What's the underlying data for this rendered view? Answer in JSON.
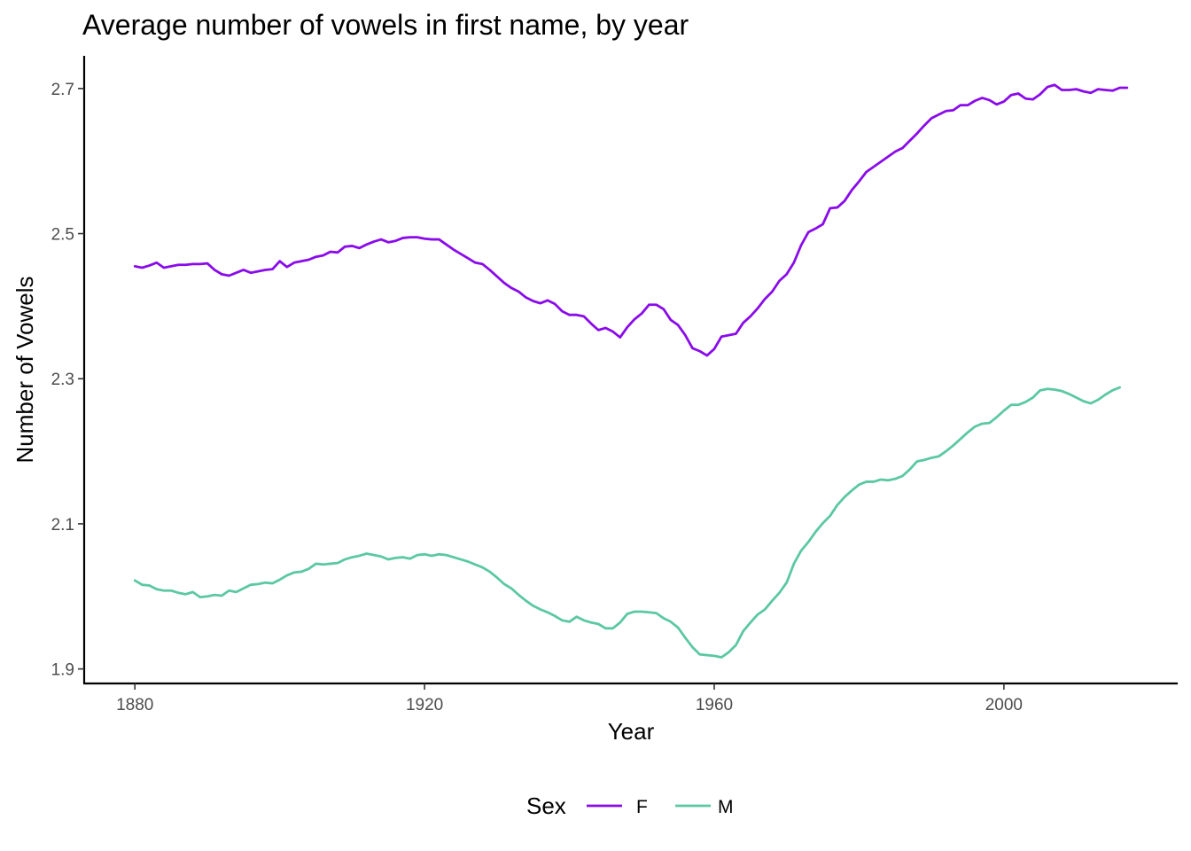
{
  "chart_data": {
    "type": "line",
    "title": "Average number of vowels in first name, by year",
    "xlabel": "Year",
    "ylabel": "Number of Vowels",
    "xlim": [
      1873,
      2024
    ],
    "ylim": [
      1.88,
      2.745
    ],
    "xticks": [
      1880,
      1920,
      1960,
      2000
    ],
    "xtick_labels": [
      "1880",
      "1920",
      "1960",
      "2000"
    ],
    "yticks": [
      1.9,
      2.1,
      2.3,
      2.5,
      2.7
    ],
    "ytick_labels": [
      "1.9",
      "2.1",
      "2.3",
      "2.5",
      "2.7"
    ],
    "grid": false,
    "legend": {
      "title": "Sex",
      "position": "bottom"
    },
    "series": [
      {
        "name": "F",
        "color": "#8A0BEA",
        "points": [
          [
            1880,
            2.455
          ],
          [
            1881,
            2.453
          ],
          [
            1882,
            2.456
          ],
          [
            1883,
            2.46
          ],
          [
            1884,
            2.453
          ],
          [
            1885,
            2.455
          ],
          [
            1886,
            2.457
          ],
          [
            1887,
            2.457
          ],
          [
            1888,
            2.458
          ],
          [
            1889,
            2.458
          ],
          [
            1890,
            2.459
          ],
          [
            1891,
            2.45
          ],
          [
            1892,
            2.444
          ],
          [
            1893,
            2.442
          ],
          [
            1894,
            2.446
          ],
          [
            1895,
            2.45
          ],
          [
            1896,
            2.446
          ],
          [
            1897,
            2.448
          ],
          [
            1898,
            2.45
          ],
          [
            1899,
            2.451
          ],
          [
            1900,
            2.462
          ],
          [
            1901,
            2.454
          ],
          [
            1902,
            2.46
          ],
          [
            1903,
            2.462
          ],
          [
            1904,
            2.464
          ],
          [
            1905,
            2.468
          ],
          [
            1906,
            2.47
          ],
          [
            1907,
            2.475
          ],
          [
            1908,
            2.474
          ],
          [
            1909,
            2.482
          ],
          [
            1910,
            2.483
          ],
          [
            1911,
            2.48
          ],
          [
            1912,
            2.485
          ],
          [
            1913,
            2.489
          ],
          [
            1914,
            2.492
          ],
          [
            1915,
            2.488
          ],
          [
            1916,
            2.49
          ],
          [
            1917,
            2.494
          ],
          [
            1918,
            2.495
          ],
          [
            1919,
            2.495
          ],
          [
            1920,
            2.493
          ],
          [
            1921,
            2.492
          ],
          [
            1922,
            2.492
          ],
          [
            1923,
            2.485
          ],
          [
            1924,
            2.478
          ],
          [
            1925,
            2.472
          ],
          [
            1926,
            2.466
          ],
          [
            1927,
            2.46
          ],
          [
            1928,
            2.458
          ],
          [
            1929,
            2.45
          ],
          [
            1930,
            2.441
          ],
          [
            1931,
            2.432
          ],
          [
            1932,
            2.425
          ],
          [
            1933,
            2.42
          ],
          [
            1934,
            2.412
          ],
          [
            1935,
            2.407
          ],
          [
            1936,
            2.404
          ],
          [
            1937,
            2.408
          ],
          [
            1938,
            2.403
          ],
          [
            1939,
            2.393
          ],
          [
            1940,
            2.388
          ],
          [
            1941,
            2.388
          ],
          [
            1942,
            2.386
          ],
          [
            1943,
            2.376
          ],
          [
            1944,
            2.367
          ],
          [
            1945,
            2.37
          ],
          [
            1946,
            2.365
          ],
          [
            1947,
            2.357
          ],
          [
            1948,
            2.371
          ],
          [
            1949,
            2.382
          ],
          [
            1950,
            2.39
          ],
          [
            1951,
            2.402
          ],
          [
            1952,
            2.402
          ],
          [
            1953,
            2.396
          ],
          [
            1954,
            2.381
          ],
          [
            1955,
            2.374
          ],
          [
            1956,
            2.36
          ],
          [
            1957,
            2.342
          ],
          [
            1958,
            2.338
          ],
          [
            1959,
            2.332
          ],
          [
            1960,
            2.341
          ],
          [
            1961,
            2.358
          ],
          [
            1962,
            2.36
          ],
          [
            1963,
            2.362
          ],
          [
            1964,
            2.377
          ],
          [
            1965,
            2.386
          ],
          [
            1966,
            2.397
          ],
          [
            1967,
            2.41
          ],
          [
            1968,
            2.42
          ],
          [
            1969,
            2.435
          ],
          [
            1970,
            2.444
          ],
          [
            1971,
            2.46
          ],
          [
            1972,
            2.484
          ],
          [
            1973,
            2.502
          ],
          [
            1974,
            2.507
          ],
          [
            1975,
            2.513
          ],
          [
            1976,
            2.535
          ],
          [
            1977,
            2.536
          ],
          [
            1978,
            2.545
          ],
          [
            1979,
            2.56
          ],
          [
            1980,
            2.572
          ],
          [
            1981,
            2.585
          ],
          [
            1982,
            2.592
          ],
          [
            1983,
            2.599
          ],
          [
            1984,
            2.606
          ],
          [
            1985,
            2.613
          ],
          [
            1986,
            2.618
          ],
          [
            1987,
            2.628
          ],
          [
            1988,
            2.638
          ],
          [
            1989,
            2.649
          ],
          [
            1990,
            2.659
          ],
          [
            1991,
            2.664
          ],
          [
            1992,
            2.669
          ],
          [
            1993,
            2.67
          ],
          [
            1994,
            2.677
          ],
          [
            1995,
            2.677
          ],
          [
            1996,
            2.683
          ],
          [
            1997,
            2.687
          ],
          [
            1998,
            2.684
          ],
          [
            1999,
            2.678
          ],
          [
            2000,
            2.682
          ],
          [
            2001,
            2.691
          ],
          [
            2002,
            2.693
          ],
          [
            2003,
            2.686
          ],
          [
            2004,
            2.685
          ],
          [
            2005,
            2.692
          ],
          [
            2006,
            2.702
          ],
          [
            2007,
            2.705
          ],
          [
            2008,
            2.698
          ],
          [
            2009,
            2.698
          ],
          [
            2010,
            2.699
          ],
          [
            2011,
            2.696
          ],
          [
            2012,
            2.694
          ],
          [
            2013,
            2.699
          ],
          [
            2014,
            2.698
          ],
          [
            2015,
            2.697
          ],
          [
            2016,
            2.701
          ],
          [
            2017,
            2.701
          ]
        ]
      },
      {
        "name": "M",
        "color": "#5BC8A3",
        "points": [
          [
            1880,
            2.022
          ],
          [
            1881,
            2.016
          ],
          [
            1882,
            2.015
          ],
          [
            1883,
            2.01
          ],
          [
            1884,
            2.008
          ],
          [
            1885,
            2.008
          ],
          [
            1886,
            2.005
          ],
          [
            1887,
            2.003
          ],
          [
            1888,
            2.006
          ],
          [
            1889,
            1.999
          ],
          [
            1890,
            2.0
          ],
          [
            1891,
            2.002
          ],
          [
            1892,
            2.001
          ],
          [
            1893,
            2.008
          ],
          [
            1894,
            2.006
          ],
          [
            1895,
            2.011
          ],
          [
            1896,
            2.016
          ],
          [
            1897,
            2.017
          ],
          [
            1898,
            2.019
          ],
          [
            1899,
            2.018
          ],
          [
            1900,
            2.023
          ],
          [
            1901,
            2.029
          ],
          [
            1902,
            2.033
          ],
          [
            1903,
            2.034
          ],
          [
            1904,
            2.038
          ],
          [
            1905,
            2.045
          ],
          [
            1906,
            2.044
          ],
          [
            1907,
            2.045
          ],
          [
            1908,
            2.046
          ],
          [
            1909,
            2.051
          ],
          [
            1910,
            2.054
          ],
          [
            1911,
            2.056
          ],
          [
            1912,
            2.059
          ],
          [
            1913,
            2.057
          ],
          [
            1914,
            2.055
          ],
          [
            1915,
            2.051
          ],
          [
            1916,
            2.053
          ],
          [
            1917,
            2.054
          ],
          [
            1918,
            2.052
          ],
          [
            1919,
            2.057
          ],
          [
            1920,
            2.058
          ],
          [
            1921,
            2.056
          ],
          [
            1922,
            2.058
          ],
          [
            1923,
            2.057
          ],
          [
            1924,
            2.054
          ],
          [
            1925,
            2.051
          ],
          [
            1926,
            2.048
          ],
          [
            1927,
            2.044
          ],
          [
            1928,
            2.04
          ],
          [
            1929,
            2.034
          ],
          [
            1930,
            2.026
          ],
          [
            1931,
            2.017
          ],
          [
            1932,
            2.011
          ],
          [
            1933,
            2.002
          ],
          [
            1934,
            1.994
          ],
          [
            1935,
            1.987
          ],
          [
            1936,
            1.982
          ],
          [
            1937,
            1.978
          ],
          [
            1938,
            1.973
          ],
          [
            1939,
            1.967
          ],
          [
            1940,
            1.965
          ],
          [
            1941,
            1.972
          ],
          [
            1942,
            1.967
          ],
          [
            1943,
            1.964
          ],
          [
            1944,
            1.962
          ],
          [
            1945,
            1.956
          ],
          [
            1946,
            1.956
          ],
          [
            1947,
            1.964
          ],
          [
            1948,
            1.976
          ],
          [
            1949,
            1.979
          ],
          [
            1950,
            1.979
          ],
          [
            1951,
            1.978
          ],
          [
            1952,
            1.977
          ],
          [
            1953,
            1.97
          ],
          [
            1954,
            1.965
          ],
          [
            1955,
            1.957
          ],
          [
            1956,
            1.943
          ],
          [
            1957,
            1.93
          ],
          [
            1958,
            1.92
          ],
          [
            1959,
            1.919
          ],
          [
            1960,
            1.918
          ],
          [
            1961,
            1.916
          ],
          [
            1962,
            1.923
          ],
          [
            1963,
            1.933
          ],
          [
            1964,
            1.952
          ],
          [
            1965,
            1.964
          ],
          [
            1966,
            1.975
          ],
          [
            1967,
            1.982
          ],
          [
            1968,
            1.994
          ],
          [
            1969,
            2.005
          ],
          [
            1970,
            2.019
          ],
          [
            1971,
            2.045
          ],
          [
            1972,
            2.063
          ],
          [
            1973,
            2.075
          ],
          [
            1974,
            2.089
          ],
          [
            1975,
            2.101
          ],
          [
            1976,
            2.111
          ],
          [
            1977,
            2.126
          ],
          [
            1978,
            2.137
          ],
          [
            1979,
            2.146
          ],
          [
            1980,
            2.154
          ],
          [
            1981,
            2.158
          ],
          [
            1982,
            2.158
          ],
          [
            1983,
            2.161
          ],
          [
            1984,
            2.16
          ],
          [
            1985,
            2.162
          ],
          [
            1986,
            2.166
          ],
          [
            1987,
            2.175
          ],
          [
            1988,
            2.186
          ],
          [
            1989,
            2.188
          ],
          [
            1990,
            2.191
          ],
          [
            1991,
            2.193
          ],
          [
            1992,
            2.2
          ],
          [
            1993,
            2.208
          ],
          [
            1994,
            2.217
          ],
          [
            1995,
            2.226
          ],
          [
            1996,
            2.234
          ],
          [
            1997,
            2.238
          ],
          [
            1998,
            2.239
          ],
          [
            1999,
            2.247
          ],
          [
            2000,
            2.256
          ],
          [
            2001,
            2.264
          ],
          [
            2002,
            2.264
          ],
          [
            2003,
            2.268
          ],
          [
            2004,
            2.274
          ],
          [
            2005,
            2.284
          ],
          [
            2006,
            2.286
          ],
          [
            2007,
            2.285
          ],
          [
            2008,
            2.283
          ],
          [
            2009,
            2.279
          ],
          [
            2010,
            2.274
          ],
          [
            2011,
            2.269
          ],
          [
            2012,
            2.266
          ],
          [
            2013,
            2.271
          ],
          [
            2014,
            2.278
          ],
          [
            2015,
            2.284
          ],
          [
            2016,
            2.288
          ]
        ]
      }
    ]
  }
}
